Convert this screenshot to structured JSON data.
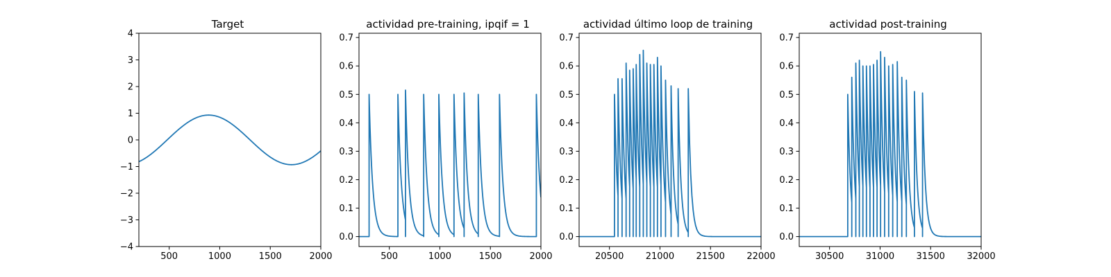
{
  "figure": {
    "line_color": "#1f77b4",
    "background": "#ffffff"
  },
  "chart_data": [
    {
      "type": "line",
      "title": "Target",
      "xlabel": "",
      "ylabel": "",
      "xlim": [
        200,
        2000
      ],
      "ylim": [
        -4,
        4
      ],
      "xticks": [
        500,
        1000,
        1500,
        2000
      ],
      "yticks": [
        -4,
        -3,
        -2,
        -1,
        0,
        1,
        2,
        3,
        4
      ],
      "grid": false,
      "legend": "none",
      "series": [
        {
          "values_formula": "sinusoid",
          "amplitude": 0.93,
          "peak_x": 890,
          "trough_x": 1710,
          "values": [
            [
              200,
              -0.83
            ],
            [
              300,
              -0.68
            ],
            [
              400,
              -0.46
            ],
            [
              500,
              -0.19
            ],
            [
              600,
              0.12
            ],
            [
              700,
              0.45
            ],
            [
              800,
              0.76
            ],
            [
              890,
              0.93
            ],
            [
              1000,
              0.87
            ],
            [
              1100,
              0.65
            ],
            [
              1200,
              0.31
            ],
            [
              1300,
              -0.06
            ],
            [
              1400,
              -0.42
            ],
            [
              1500,
              -0.72
            ],
            [
              1600,
              -0.89
            ],
            [
              1710,
              -0.93
            ],
            [
              1800,
              -0.86
            ],
            [
              1900,
              -0.66
            ],
            [
              2000,
              -0.33
            ]
          ]
        }
      ]
    },
    {
      "type": "line",
      "title": "actividad pre-training, ipqif = 1",
      "xlabel": "",
      "ylabel": "",
      "xlim": [
        200,
        2000
      ],
      "ylim": [
        -0.035,
        0.715
      ],
      "xticks": [
        500,
        1000,
        1500,
        2000
      ],
      "yticks": [
        0.0,
        0.1,
        0.2,
        0.3,
        0.4,
        0.5,
        0.6,
        0.7
      ],
      "grid": false,
      "legend": "none",
      "series": [
        {
          "kind": "spike_train",
          "baseline": 0.0,
          "tau": 35,
          "spikes": [
            [
              300,
              0.5
            ],
            [
              585,
              0.5
            ],
            [
              660,
              0.515
            ],
            [
              840,
              0.5
            ],
            [
              990,
              0.5
            ],
            [
              1140,
              0.5
            ],
            [
              1240,
              0.505
            ],
            [
              1380,
              0.5
            ],
            [
              1590,
              0.5
            ],
            [
              1955,
              0.5
            ]
          ]
        }
      ]
    },
    {
      "type": "line",
      "title": "actividad último loop de training",
      "xlabel": "",
      "ylabel": "",
      "xlim": [
        20200,
        22000
      ],
      "ylim": [
        -0.035,
        0.715
      ],
      "xticks": [
        20500,
        21000,
        21500,
        22000
      ],
      "yticks": [
        0.0,
        0.1,
        0.2,
        0.3,
        0.4,
        0.5,
        0.6,
        0.7
      ],
      "grid": false,
      "legend": "none",
      "series": [
        {
          "kind": "spike_train",
          "baseline": 0.0,
          "tau": 28,
          "spikes": [
            [
              20550,
              0.5
            ],
            [
              20585,
              0.555
            ],
            [
              20625,
              0.555
            ],
            [
              20665,
              0.61
            ],
            [
              20700,
              0.585
            ],
            [
              20735,
              0.59
            ],
            [
              20765,
              0.605
            ],
            [
              20800,
              0.64
            ],
            [
              20835,
              0.655
            ],
            [
              20870,
              0.61
            ],
            [
              20905,
              0.605
            ],
            [
              20940,
              0.605
            ],
            [
              20975,
              0.63
            ],
            [
              21010,
              0.6
            ],
            [
              21055,
              0.55
            ],
            [
              21110,
              0.53
            ],
            [
              21180,
              0.52
            ],
            [
              21280,
              0.52
            ]
          ]
        }
      ]
    },
    {
      "type": "line",
      "title": "actividad post-training",
      "xlabel": "",
      "ylabel": "",
      "xlim": [
        30200,
        32000
      ],
      "ylim": [
        -0.035,
        0.715
      ],
      "xticks": [
        30500,
        31000,
        31500,
        32000
      ],
      "yticks": [
        0.0,
        0.1,
        0.2,
        0.3,
        0.4,
        0.5,
        0.6,
        0.7
      ],
      "grid": false,
      "legend": "none",
      "series": [
        {
          "kind": "spike_train",
          "baseline": 0.0,
          "tau": 28,
          "spikes": [
            [
              30680,
              0.5
            ],
            [
              30720,
              0.56
            ],
            [
              30760,
              0.61
            ],
            [
              30795,
              0.62
            ],
            [
              30830,
              0.6
            ],
            [
              30865,
              0.6
            ],
            [
              30900,
              0.6
            ],
            [
              30935,
              0.605
            ],
            [
              30970,
              0.62
            ],
            [
              31005,
              0.65
            ],
            [
              31045,
              0.63
            ],
            [
              31085,
              0.6
            ],
            [
              31125,
              0.605
            ],
            [
              31170,
              0.615
            ],
            [
              31215,
              0.56
            ],
            [
              31260,
              0.55
            ],
            [
              31340,
              0.51
            ],
            [
              31420,
              0.505
            ]
          ]
        }
      ]
    }
  ]
}
